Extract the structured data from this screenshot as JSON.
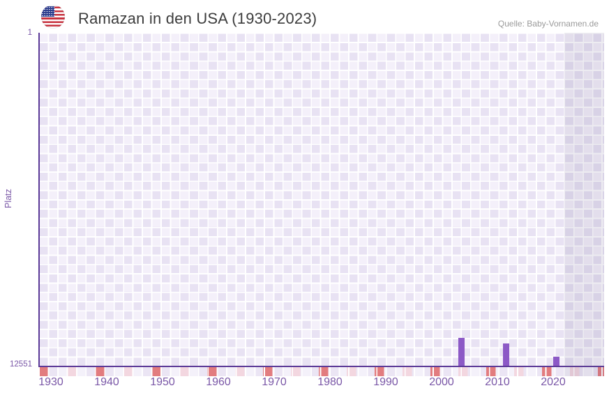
{
  "header": {
    "title": "Ramazan in den USA (1930-2023)",
    "source": "Quelle: Baby-Vornamen.de",
    "flag": "usa"
  },
  "chart_data": {
    "type": "bar",
    "title": "Ramazan in den USA (1930-2023)",
    "xlabel": "",
    "ylabel": "Platz",
    "y_axis": {
      "top_tick": "1",
      "bottom_tick": "12551",
      "min": 1,
      "max": 12551,
      "inverted": true
    },
    "x_ticks": [
      "1930",
      "1940",
      "1950",
      "1960",
      "1970",
      "1980",
      "1990",
      "2000",
      "2010",
      "2020"
    ],
    "x_range": [
      1928,
      2029.125
    ],
    "points": [
      {
        "year": 2003,
        "rank": 11500
      },
      {
        "year": 2011,
        "rank": 11710
      },
      {
        "year": 2020,
        "rank": 12210
      }
    ],
    "highlight_band_years": [
      2022,
      2029
    ],
    "legend": "none",
    "grid": "checkered",
    "colors": {
      "bar": "#8c59c6",
      "axis": "#5b3997",
      "tick_label": "#7a57a7",
      "marker_red": "#e27c7f",
      "marker_pink": "#f3d7e0",
      "checker_dark": "#e8e2f3",
      "checker_light": "#f4f0fa",
      "band_overlay": "rgba(93,80,124,0.11)"
    }
  }
}
